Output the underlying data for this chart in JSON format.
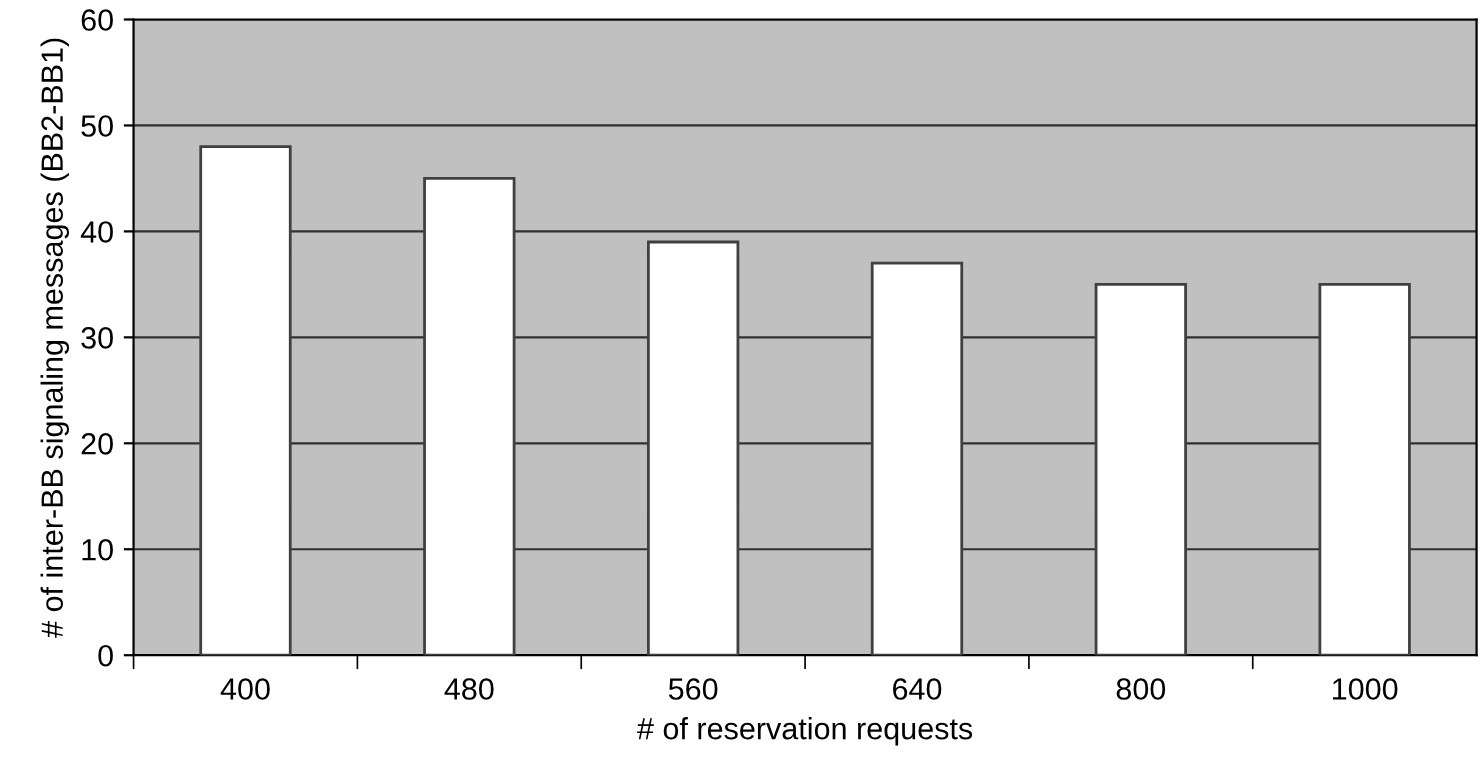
{
  "chart_data": {
    "type": "bar",
    "xlabel": "# of reservation requests",
    "ylabel": "# of inter-BB signaling messages (BB2-BB1)",
    "categories": [
      "400",
      "480",
      "560",
      "640",
      "800",
      "1000"
    ],
    "values": [
      48,
      45,
      39,
      37,
      35,
      35
    ],
    "color": "#ffffff",
    "ylim": [
      0,
      60
    ],
    "yticks": [
      0,
      10,
      20,
      30,
      40,
      50,
      60
    ],
    "grid": "y",
    "legend": false
  }
}
